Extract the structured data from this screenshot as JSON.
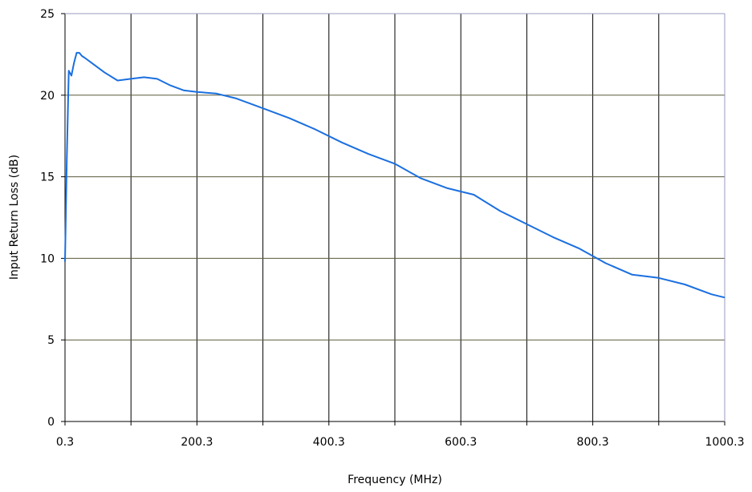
{
  "chart_data": {
    "type": "line",
    "title": "",
    "xlabel": "Frequency (MHz)",
    "ylabel": "Input Return Loss (dB)",
    "xlim": [
      0.3,
      1000.3
    ],
    "ylim": [
      0,
      25
    ],
    "grid": true,
    "x_tick_labels": [
      "0.3",
      "200.3",
      "400.3",
      "600.3",
      "800.3",
      "1000.3"
    ],
    "y_tick_labels": [
      "0",
      "5",
      "10",
      "15",
      "20",
      "25"
    ],
    "series": [
      {
        "color": "#1a6fe0",
        "x": [
          0.3,
          3,
          6,
          10,
          14,
          18,
          22,
          26,
          30,
          40,
          60,
          80,
          100,
          120,
          140,
          160,
          180,
          200,
          230,
          260,
          300,
          340,
          380,
          420,
          460,
          500,
          540,
          580,
          620,
          660,
          700,
          740,
          780,
          820,
          860,
          900,
          940,
          980,
          1000.3
        ],
        "y": [
          9.8,
          16.0,
          21.5,
          21.2,
          22.0,
          22.6,
          22.6,
          22.4,
          22.3,
          22.0,
          21.4,
          20.9,
          21.0,
          21.1,
          21.0,
          20.6,
          20.3,
          20.2,
          20.1,
          19.8,
          19.2,
          18.6,
          17.9,
          17.1,
          16.4,
          15.8,
          14.9,
          14.3,
          13.9,
          12.9,
          12.1,
          11.3,
          10.6,
          9.7,
          9.0,
          8.8,
          8.4,
          7.8,
          7.6
        ]
      }
    ]
  }
}
